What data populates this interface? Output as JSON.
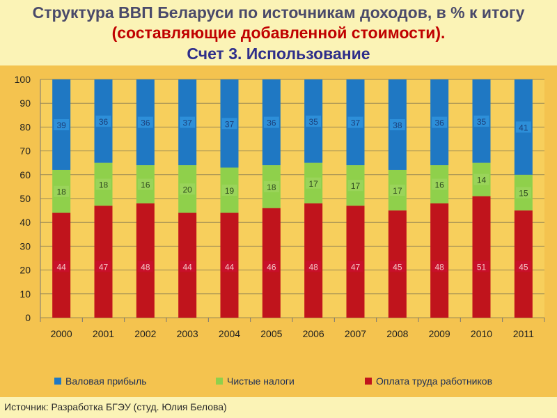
{
  "page": {
    "title_part1": "Структура ВВП Беларуси по источникам доходов, в % к итогу ",
    "title_part2": "(составляющие добавленной стоимости).",
    "subtitle": "Счет 3. Использование",
    "source": "Источник: Разработка БГЭУ (студ. Юлия Белова)"
  },
  "colors": {
    "profit": "#1f78c3",
    "taxes": "#8fd04b",
    "labor": "#c0141c",
    "label_profit_bg": "#2d8fd9",
    "label_taxes_bg": "#9ad45a",
    "label_labor_bg": "#c8102a"
  },
  "chart_data": {
    "type": "bar",
    "stacked": true,
    "categories": [
      "2000",
      "2001",
      "2002",
      "2003",
      "2004",
      "2005",
      "2006",
      "2007",
      "2008",
      "2009",
      "2010",
      "2011"
    ],
    "series": [
      {
        "name": "Оплата труда работников",
        "key": "labor",
        "values": [
          44,
          47,
          48,
          44,
          44,
          46,
          48,
          47,
          45,
          48,
          51,
          45
        ]
      },
      {
        "name": "Чистые налоги",
        "key": "taxes",
        "values": [
          18,
          18,
          16,
          20,
          19,
          18,
          17,
          17,
          17,
          16,
          14,
          15
        ]
      },
      {
        "name": "Валовая прибыль",
        "key": "profit",
        "values": [
          39,
          36,
          36,
          37,
          37,
          36,
          35,
          37,
          38,
          36,
          35,
          41
        ]
      }
    ],
    "legend_order": [
      "profit",
      "taxes",
      "labor"
    ],
    "ylim": [
      0,
      100
    ],
    "yticks": [
      0,
      10,
      20,
      30,
      40,
      50,
      60,
      70,
      80,
      90,
      100
    ],
    "grid": true,
    "legend_position": "bottom"
  }
}
